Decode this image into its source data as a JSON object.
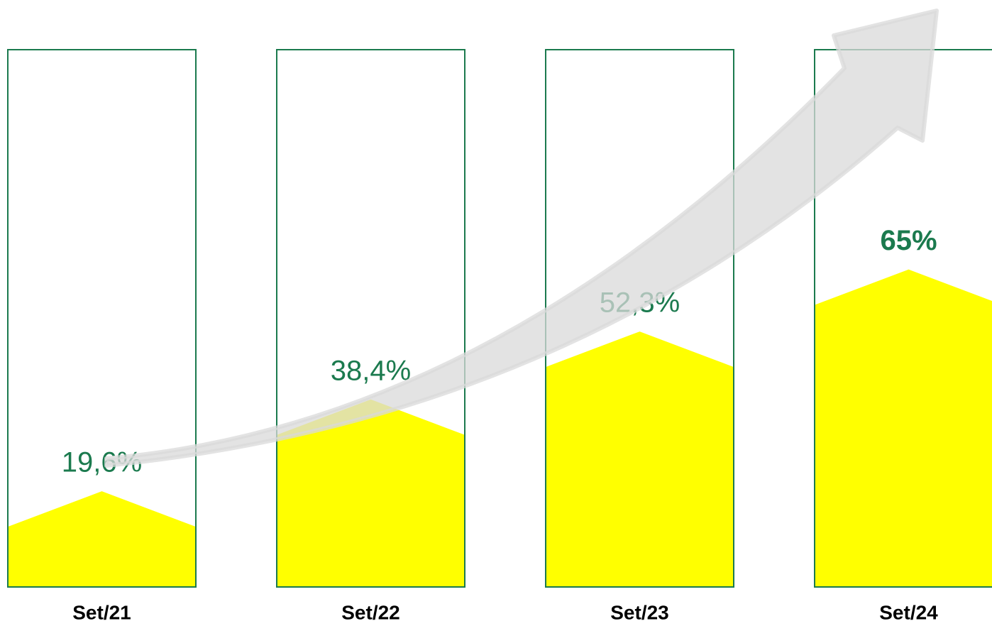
{
  "chart_data": {
    "type": "arrow-bar",
    "categories": [
      "Set/21",
      "Set/22",
      "Set/23",
      "Set/24"
    ],
    "values": [
      19.6,
      38.4,
      52.3,
      65
    ],
    "value_labels": [
      "19,6%",
      "38,4%",
      "52,3%",
      "65%"
    ],
    "ylim": [
      0,
      110
    ],
    "color": "#ffff00",
    "outline_color": "#1b7a4e",
    "label_color": "#1b7a4e",
    "bold_index": 3
  }
}
